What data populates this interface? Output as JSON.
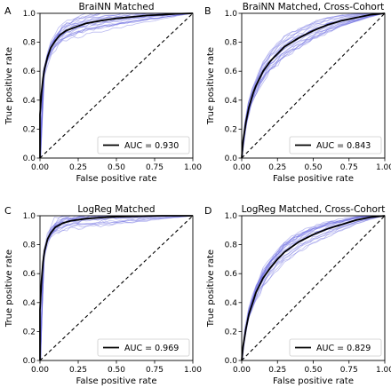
{
  "chart_data": [
    {
      "panel_letter": "A",
      "type": "line",
      "title": "BraiNN Matched",
      "xlabel": "False positive rate",
      "ylabel": "True positive rate",
      "xlim": [
        0,
        1
      ],
      "ylim": [
        0,
        1
      ],
      "xticks": [
        "0.00",
        "0.25",
        "0.50",
        "0.75",
        "1.00"
      ],
      "yticks": [
        "0.0",
        "0.2",
        "0.4",
        "0.6",
        "0.8",
        "1.0"
      ],
      "legend_label": "AUC = 0.930",
      "legend_position": "lower-right",
      "auc": 0.93,
      "mean_curve": {
        "x": [
          0.0,
          0.0,
          0.01,
          0.02,
          0.03,
          0.05,
          0.07,
          0.1,
          0.13,
          0.17,
          0.22,
          0.3,
          0.4,
          0.5,
          0.6,
          0.7,
          0.8,
          0.9,
          1.0
        ],
        "y": [
          0.0,
          0.3,
          0.45,
          0.55,
          0.62,
          0.7,
          0.76,
          0.81,
          0.85,
          0.88,
          0.9,
          0.93,
          0.95,
          0.965,
          0.975,
          0.985,
          0.99,
          0.997,
          1.0
        ]
      },
      "fold_curve_count": 20,
      "chance_line": {
        "x": [
          0,
          1
        ],
        "y": [
          0,
          1
        ]
      }
    },
    {
      "panel_letter": "B",
      "type": "line",
      "title": "BraiNN Matched, Cross-Cohort",
      "xlabel": "False positive rate",
      "ylabel": "True positive rate",
      "xlim": [
        0,
        1
      ],
      "ylim": [
        0,
        1
      ],
      "xticks": [
        "0.00",
        "0.25",
        "0.50",
        "0.75",
        "1.00"
      ],
      "yticks": [
        "0.0",
        "0.2",
        "0.4",
        "0.6",
        "0.8",
        "1.0"
      ],
      "legend_label": "AUC = 0.843",
      "legend_position": "lower-right",
      "auc": 0.843,
      "mean_curve": {
        "x": [
          0.0,
          0.01,
          0.03,
          0.05,
          0.08,
          0.1,
          0.15,
          0.2,
          0.25,
          0.3,
          0.4,
          0.5,
          0.6,
          0.7,
          0.8,
          0.9,
          1.0
        ],
        "y": [
          0.0,
          0.12,
          0.25,
          0.35,
          0.45,
          0.5,
          0.6,
          0.67,
          0.72,
          0.77,
          0.83,
          0.88,
          0.92,
          0.95,
          0.97,
          0.99,
          1.0
        ]
      },
      "fold_curve_count": 20,
      "chance_line": {
        "x": [
          0,
          1
        ],
        "y": [
          0,
          1
        ]
      }
    },
    {
      "panel_letter": "C",
      "type": "line",
      "title": "LogReg Matched",
      "xlabel": "False positive rate",
      "ylabel": "True positive rate",
      "xlim": [
        0,
        1
      ],
      "ylim": [
        0,
        1
      ],
      "xticks": [
        "0.00",
        "0.25",
        "0.50",
        "0.75",
        "1.00"
      ],
      "yticks": [
        "0.0",
        "0.2",
        "0.4",
        "0.6",
        "0.8",
        "1.0"
      ],
      "legend_label": "AUC = 0.969",
      "legend_position": "lower-right",
      "auc": 0.969,
      "mean_curve": {
        "x": [
          0.0,
          0.0,
          0.01,
          0.02,
          0.03,
          0.05,
          0.07,
          0.1,
          0.15,
          0.2,
          0.3,
          0.4,
          0.5,
          0.6,
          0.7,
          0.8,
          1.0
        ],
        "y": [
          0.0,
          0.35,
          0.55,
          0.68,
          0.76,
          0.84,
          0.88,
          0.92,
          0.95,
          0.965,
          0.98,
          0.988,
          0.993,
          0.996,
          0.998,
          1.0,
          1.0
        ]
      },
      "fold_curve_count": 20,
      "chance_line": {
        "x": [
          0,
          1
        ],
        "y": [
          0,
          1
        ]
      }
    },
    {
      "panel_letter": "D",
      "type": "line",
      "title": "LogReg Matched, Cross-Cohort",
      "xlabel": "False positive rate",
      "ylabel": "True positive rate",
      "xlim": [
        0,
        1
      ],
      "ylim": [
        0,
        1
      ],
      "xticks": [
        "0.00",
        "0.25",
        "0.50",
        "0.75",
        "1.00"
      ],
      "yticks": [
        "0.0",
        "0.2",
        "0.4",
        "0.6",
        "0.8",
        "1.0"
      ],
      "legend_label": "AUC = 0.829",
      "legend_position": "lower-right",
      "auc": 0.829,
      "mean_curve": {
        "x": [
          0.0,
          0.01,
          0.03,
          0.05,
          0.08,
          0.1,
          0.15,
          0.2,
          0.25,
          0.3,
          0.4,
          0.5,
          0.6,
          0.7,
          0.8,
          0.9,
          1.0
        ],
        "y": [
          0.0,
          0.1,
          0.22,
          0.32,
          0.41,
          0.47,
          0.57,
          0.64,
          0.7,
          0.75,
          0.82,
          0.87,
          0.91,
          0.94,
          0.97,
          0.99,
          1.0
        ]
      },
      "fold_curve_count": 20,
      "chance_line": {
        "x": [
          0,
          1
        ],
        "y": [
          0,
          1
        ]
      }
    }
  ],
  "colors": {
    "mean_curve": "#000000",
    "fold_curves": "#6a6ae0",
    "chance_line": "#000000",
    "axes": "#000000"
  }
}
